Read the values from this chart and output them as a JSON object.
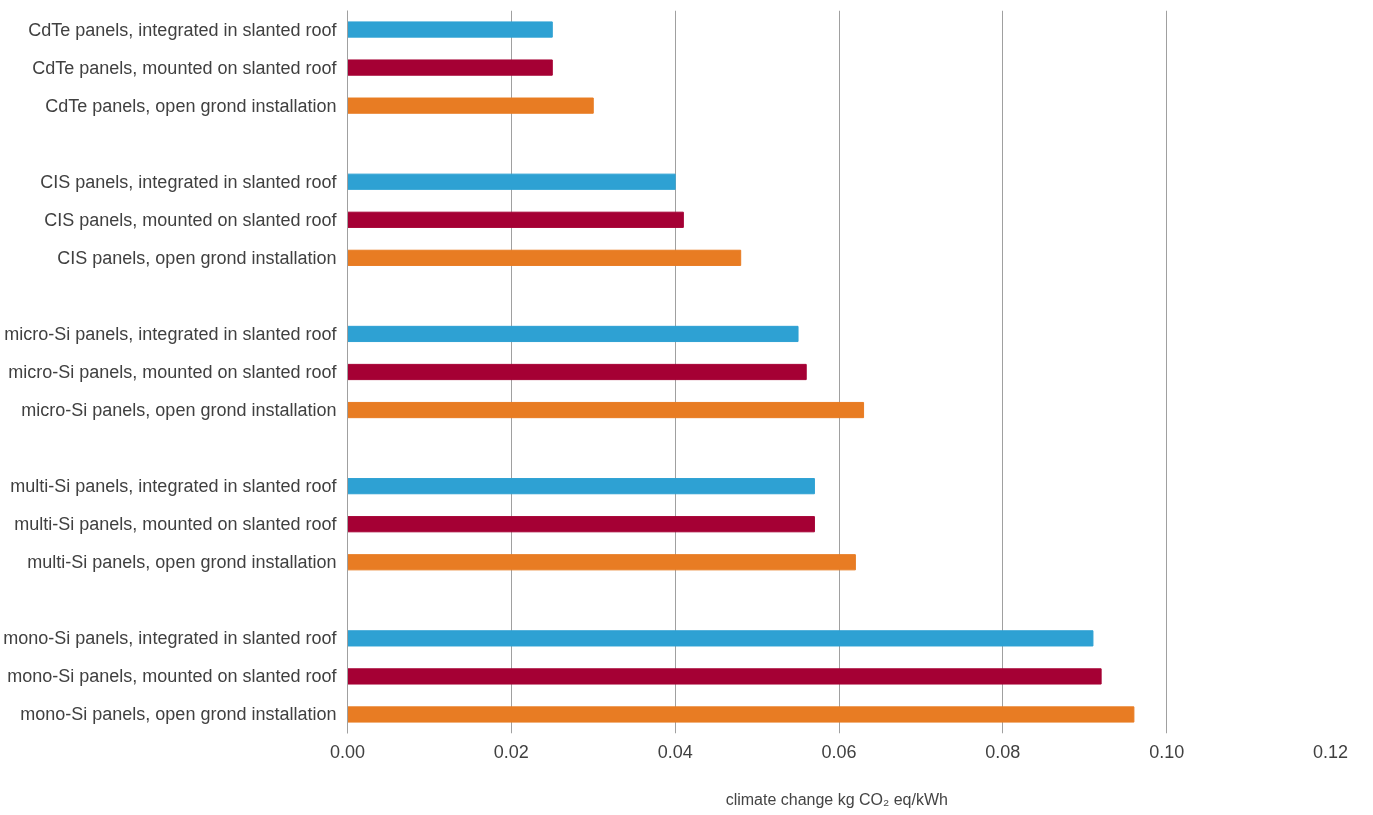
{
  "chart_data": {
    "type": "bar",
    "orientation": "horizontal",
    "xlabel": "climate  change kg CO₂ eq/kWh",
    "categories": [
      "CdTe panels, integrated in slanted roof",
      "CdTe panels, mounted on slanted roof",
      "CdTe panels, open grond installation",
      null,
      "CIS panels, integrated in slanted roof",
      "CIS panels, mounted on slanted roof",
      "CIS panels, open grond installation",
      null,
      "micro-Si panels, integrated in slanted roof",
      "micro-Si panels, mounted on slanted roof",
      "micro-Si panels, open grond installation",
      null,
      "multi-Si panels, integrated in slanted roof",
      "multi-Si panels, mounted on slanted roof",
      "multi-Si panels, open grond installation",
      null,
      "mono-Si panels, integrated in slanted roof",
      "mono-Si panels, mounted on slanted roof",
      "mono-Si panels, open grond installation"
    ],
    "values": [
      0.025,
      0.025,
      0.03,
      null,
      0.04,
      0.041,
      0.048,
      null,
      0.055,
      0.056,
      0.063,
      null,
      0.057,
      0.057,
      0.062,
      null,
      0.091,
      0.092,
      0.096
    ],
    "colors": [
      "#2ea1d3",
      "#a50034",
      "#e87c23",
      null,
      "#2ea1d3",
      "#a50034",
      "#e87c23",
      null,
      "#2ea1d3",
      "#a50034",
      "#e87c23",
      null,
      "#2ea1d3",
      "#a50034",
      "#e87c23",
      null,
      "#2ea1d3",
      "#a50034",
      "#e87c23"
    ],
    "xlim": [
      0,
      0.12
    ],
    "xticks": [
      {
        "value": 0,
        "label": "0.00"
      },
      {
        "value": 0.02,
        "label": "0.02"
      },
      {
        "value": 0.04,
        "label": "0.04"
      },
      {
        "value": 0.06,
        "label": "0.06"
      },
      {
        "value": 0.08,
        "label": "0.08"
      },
      {
        "value": 0.1,
        "label": "0.10"
      },
      {
        "value": 0.12,
        "label": "0.12"
      }
    ],
    "grid": "x"
  }
}
